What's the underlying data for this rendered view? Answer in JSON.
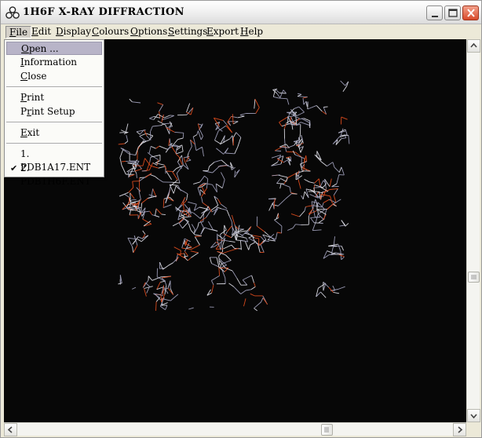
{
  "window": {
    "title": "1H6F X-RAY DIFFRACTION"
  },
  "menubar": {
    "items": [
      {
        "key": "F",
        "rest": "ile"
      },
      {
        "key": "E",
        "rest": "dit"
      },
      {
        "key": "D",
        "rest": "isplay"
      },
      {
        "key": "C",
        "rest": "olours"
      },
      {
        "key": "O",
        "rest": "ptions"
      },
      {
        "key": "S",
        "rest": "ettings"
      },
      {
        "key": "E",
        "rest": "xport"
      },
      {
        "key": "H",
        "rest": "elp"
      }
    ]
  },
  "file_menu": {
    "open": {
      "key": "O",
      "rest": "pen ..."
    },
    "information": {
      "key": "I",
      "rest": "nformation"
    },
    "close": {
      "key": "C",
      "rest": "lose"
    },
    "print": {
      "key": "P",
      "rest": "rint"
    },
    "print_setup": {
      "pre": "P",
      "key": "r",
      "rest": "int Setup"
    },
    "exit": {
      "key": "E",
      "rest": "xit"
    },
    "recent": [
      {
        "label": "1. PDB1A17.ENT",
        "checked": false
      },
      {
        "label": "2. PDB1H6F.ENT",
        "checked": true
      }
    ],
    "highlighted": "open"
  },
  "molecule_colors": {
    "background": "#070707",
    "bonds": "#9a9ab4",
    "bonds_light": "#d6d6de",
    "oxygen": "#d84a1c"
  },
  "icons": {
    "app": "molecule-icon",
    "minimize": "minimize-icon",
    "maximize": "maximize-icon",
    "close": "close-icon",
    "check": "check-icon"
  }
}
